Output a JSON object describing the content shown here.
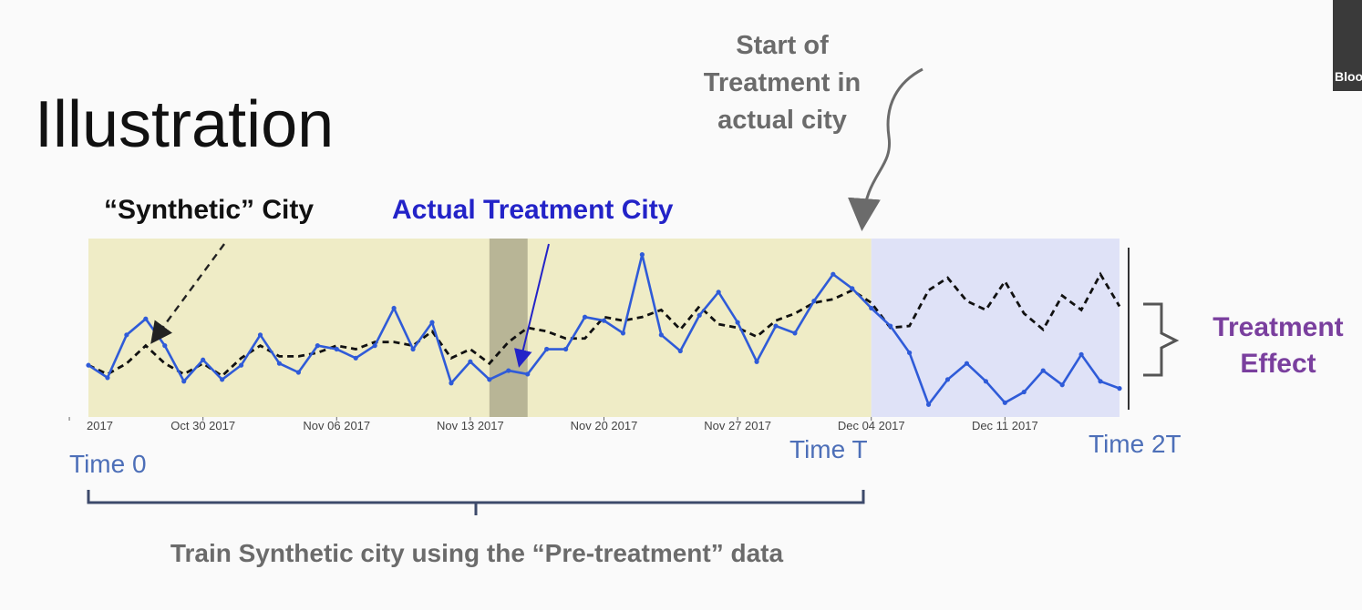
{
  "slide": {
    "title": "Illustration",
    "start_label": "Start of Treatment in actual city",
    "synthetic_label": "“Synthetic” City",
    "actual_label": "Actual Treatment City",
    "effect_label": "Treatment Effect",
    "time0_label": "Time 0",
    "timeT_label": "Time T",
    "time2T_label": "Time 2T",
    "train_label": "Train Synthetic city using the “Pre-treatment” data",
    "webcam_text": "Bloo"
  },
  "colors": {
    "actual": "#2f5bd8",
    "synthetic": "#111111",
    "pre_bg": "#efecc6",
    "post_bg": "#dfe2f7",
    "highlight": "#b8b596"
  },
  "chart_data": {
    "type": "line",
    "x_tick_labels": [
      "2017",
      "Oct 30 2017",
      "Nov 06 2017",
      "Nov 13 2017",
      "Nov 20 2017",
      "Nov 27 2017",
      "Dec 04 2017",
      "Dec 11 2017"
    ],
    "x_start": "2017-10-24",
    "x_end": "2017-12-17",
    "treatment_start": "2017-12-04",
    "highlight_range": [
      "2017-11-14",
      "2017-11-16"
    ],
    "ylim": [
      0,
      1
    ],
    "series": [
      {
        "name": "Actual Treatment City",
        "style": "solid-markers",
        "x": [
          "2017-10-24",
          "2017-10-25",
          "2017-10-26",
          "2017-10-27",
          "2017-10-28",
          "2017-10-29",
          "2017-10-30",
          "2017-10-31",
          "2017-11-01",
          "2017-11-02",
          "2017-11-03",
          "2017-11-04",
          "2017-11-05",
          "2017-11-06",
          "2017-11-07",
          "2017-11-08",
          "2017-11-09",
          "2017-11-10",
          "2017-11-11",
          "2017-11-12",
          "2017-11-13",
          "2017-11-14",
          "2017-11-15",
          "2017-11-16",
          "2017-11-17",
          "2017-11-18",
          "2017-11-19",
          "2017-11-20",
          "2017-11-21",
          "2017-11-22",
          "2017-11-23",
          "2017-11-24",
          "2017-11-25",
          "2017-11-26",
          "2017-11-27",
          "2017-11-28",
          "2017-11-29",
          "2017-11-30",
          "2017-12-01",
          "2017-12-02",
          "2017-12-03",
          "2017-12-04",
          "2017-12-05",
          "2017-12-06",
          "2017-12-07",
          "2017-12-08",
          "2017-12-09",
          "2017-12-10",
          "2017-12-11",
          "2017-12-12",
          "2017-12-13",
          "2017-12-14",
          "2017-12-15",
          "2017-12-16",
          "2017-12-17"
        ],
        "values": [
          0.29,
          0.22,
          0.46,
          0.55,
          0.4,
          0.2,
          0.32,
          0.21,
          0.29,
          0.46,
          0.3,
          0.25,
          0.4,
          0.38,
          0.33,
          0.4,
          0.61,
          0.38,
          0.53,
          0.19,
          0.31,
          0.21,
          0.26,
          0.24,
          0.38,
          0.38,
          0.56,
          0.54,
          0.47,
          0.91,
          0.46,
          0.37,
          0.57,
          0.7,
          0.53,
          0.31,
          0.51,
          0.47,
          0.65,
          0.8,
          0.72,
          0.61,
          0.51,
          0.36,
          0.07,
          0.21,
          0.3,
          0.2,
          0.08,
          0.14,
          0.26,
          0.18,
          0.35,
          0.2,
          0.16
        ]
      },
      {
        "name": "“Synthetic” City",
        "style": "dashed",
        "x": [
          "2017-10-24",
          "2017-10-25",
          "2017-10-26",
          "2017-10-27",
          "2017-10-28",
          "2017-10-29",
          "2017-10-30",
          "2017-10-31",
          "2017-11-01",
          "2017-11-02",
          "2017-11-03",
          "2017-11-04",
          "2017-11-05",
          "2017-11-06",
          "2017-11-07",
          "2017-11-08",
          "2017-11-09",
          "2017-11-10",
          "2017-11-11",
          "2017-11-12",
          "2017-11-13",
          "2017-11-14",
          "2017-11-15",
          "2017-11-16",
          "2017-11-17",
          "2017-11-18",
          "2017-11-19",
          "2017-11-20",
          "2017-11-21",
          "2017-11-22",
          "2017-11-23",
          "2017-11-24",
          "2017-11-25",
          "2017-11-26",
          "2017-11-27",
          "2017-11-28",
          "2017-11-29",
          "2017-11-30",
          "2017-12-01",
          "2017-12-02",
          "2017-12-03",
          "2017-12-04",
          "2017-12-05",
          "2017-12-06",
          "2017-12-07",
          "2017-12-08",
          "2017-12-09",
          "2017-12-10",
          "2017-12-11",
          "2017-12-12",
          "2017-12-13",
          "2017-12-14",
          "2017-12-15",
          "2017-12-16",
          "2017-12-17"
        ],
        "values": [
          0.29,
          0.24,
          0.3,
          0.4,
          0.3,
          0.24,
          0.3,
          0.23,
          0.33,
          0.4,
          0.34,
          0.34,
          0.36,
          0.4,
          0.38,
          0.42,
          0.42,
          0.4,
          0.48,
          0.33,
          0.38,
          0.3,
          0.42,
          0.5,
          0.48,
          0.44,
          0.44,
          0.56,
          0.54,
          0.56,
          0.6,
          0.49,
          0.62,
          0.52,
          0.5,
          0.45,
          0.54,
          0.58,
          0.64,
          0.66,
          0.71,
          0.64,
          0.5,
          0.51,
          0.71,
          0.78,
          0.65,
          0.6,
          0.76,
          0.58,
          0.49,
          0.68,
          0.6,
          0.8,
          0.62
        ]
      }
    ]
  }
}
